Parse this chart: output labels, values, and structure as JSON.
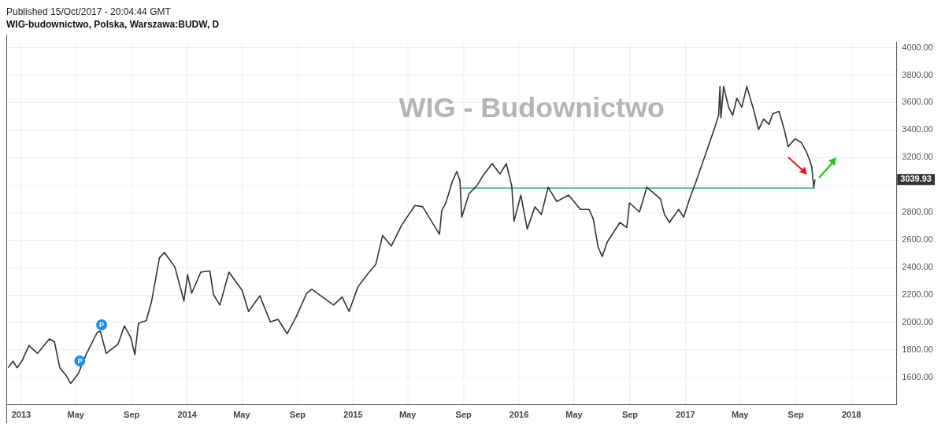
{
  "chart_data": {
    "type": "line",
    "title": "WIG-budownictwo, Polska, Warszawa:BUDW, D",
    "annotations": [
      "Published 15/Oct/2017 - 20:04:44 GMT",
      "WIG - Budownictwo",
      {
        "text": "P",
        "x": "2013-05-10",
        "y": 1720
      },
      {
        "text": "P",
        "x": "2013-06-27",
        "y": 1983
      }
    ],
    "xlim": [
      "2012-12-01",
      "2018-04-10"
    ],
    "xticks": [
      {
        "value": "2013-01-01",
        "label": "2013"
      },
      {
        "value": "2013-05-01",
        "label": "May"
      },
      {
        "value": "2013-09-01",
        "label": "Sep"
      },
      {
        "value": "2014-01-01",
        "label": "2014"
      },
      {
        "value": "2014-05-01",
        "label": "May"
      },
      {
        "value": "2014-09-01",
        "label": "Sep"
      },
      {
        "value": "2015-01-01",
        "label": "2015"
      },
      {
        "value": "2015-05-01",
        "label": "May"
      },
      {
        "value": "2015-09-01",
        "label": "Sep"
      },
      {
        "value": "2016-01-01",
        "label": "2016"
      },
      {
        "value": "2016-05-01",
        "label": "May"
      },
      {
        "value": "2016-09-01",
        "label": "Sep"
      },
      {
        "value": "2017-01-01",
        "label": "2017"
      },
      {
        "value": "2017-05-01",
        "label": "May"
      },
      {
        "value": "2017-09-01",
        "label": "Sep"
      },
      {
        "value": "2018-01-01",
        "label": "2018"
      }
    ],
    "ylim": [
      1400,
      4040
    ],
    "yticks": [
      {
        "value": 1600,
        "label": "1600.00"
      },
      {
        "value": 1800,
        "label": "1800.00"
      },
      {
        "value": 2000,
        "label": "2000.00"
      },
      {
        "value": 2200,
        "label": "2200.00"
      },
      {
        "value": 2400,
        "label": "2400.00"
      },
      {
        "value": 2600,
        "label": "2600.00"
      },
      {
        "value": 2800,
        "label": "2800.00"
      },
      {
        "value": 3000,
        "label": null
      },
      {
        "value": 3200,
        "label": "3200.00"
      },
      {
        "value": 3400,
        "label": "3400.00"
      },
      {
        "value": 3600,
        "label": "3600.00"
      },
      {
        "value": 3800,
        "label": "3800.00"
      },
      {
        "value": 4000,
        "label": "4000.00"
      }
    ],
    "grid": true,
    "ref_lines": [
      {
        "axis": "y",
        "value": 3039.93,
        "label": "3039.93",
        "color": "#333333"
      }
    ],
    "series": [
      {
        "color": "#333333",
        "x": [
          "2012-12-03",
          "2012-12-14",
          "2012-12-23",
          "2013-01-03",
          "2013-01-18",
          "2013-02-06",
          "2013-03-04",
          "2013-03-15",
          "2013-03-27",
          "2013-04-10",
          "2013-04-20",
          "2013-05-06",
          "2013-05-25",
          "2013-06-17",
          "2013-06-24",
          "2013-07-07",
          "2013-08-02",
          "2013-08-16",
          "2013-08-30",
          "2013-09-08",
          "2013-09-16",
          "2013-10-03",
          "2013-10-15",
          "2013-11-01",
          "2013-11-12",
          "2013-12-05",
          "2013-12-25",
          "2014-01-02",
          "2014-01-11",
          "2014-01-31",
          "2014-02-20",
          "2014-02-28",
          "2014-03-14",
          "2014-04-03",
          "2014-05-02",
          "2014-05-16",
          "2014-06-10",
          "2014-07-03",
          "2014-07-20",
          "2014-08-09",
          "2014-08-29",
          "2014-09-21",
          "2014-10-02",
          "2014-11-19",
          "2014-12-08",
          "2014-12-23",
          "2015-01-12",
          "2015-02-03",
          "2015-02-20",
          "2015-03-07",
          "2015-03-26",
          "2015-04-18",
          "2015-05-17",
          "2015-06-03",
          "2015-07-10",
          "2015-07-15",
          "2015-07-24",
          "2015-08-07",
          "2015-08-17",
          "2015-08-24",
          "2015-08-28",
          "2015-09-13",
          "2015-09-30",
          "2015-10-14",
          "2015-11-03",
          "2015-11-20",
          "2015-12-04",
          "2015-12-16",
          "2015-12-21",
          "2016-01-05",
          "2016-01-19",
          "2016-02-05",
          "2016-02-19",
          "2016-03-05",
          "2016-03-24",
          "2016-04-19",
          "2016-05-15",
          "2016-06-03",
          "2016-06-12",
          "2016-06-23",
          "2016-07-02",
          "2016-07-13",
          "2016-08-10",
          "2016-08-25",
          "2016-08-31",
          "2016-09-22",
          "2016-10-08",
          "2016-11-07",
          "2016-11-16",
          "2016-11-27",
          "2016-12-17",
          "2016-12-28",
          "2017-01-11",
          "2017-01-23",
          "2017-02-12",
          "2017-03-06",
          "2017-03-15",
          "2017-03-18",
          "2017-03-20",
          "2017-03-26",
          "2017-04-06",
          "2017-04-15",
          "2017-04-24",
          "2017-05-05",
          "2017-05-16",
          "2017-05-31",
          "2017-06-11",
          "2017-06-22",
          "2017-07-04",
          "2017-07-12",
          "2017-07-26",
          "2017-08-07",
          "2017-08-15",
          "2017-08-30",
          "2017-09-13",
          "2017-09-24",
          "2017-10-02",
          "2017-10-06",
          "2017-10-10",
          "2017-10-13"
        ],
        "values": [
          1670,
          1718,
          1670,
          1722,
          1832,
          1775,
          1880,
          1861,
          1670,
          1613,
          1556,
          1623,
          1775,
          1927,
          1937,
          1775,
          1842,
          1975,
          1890,
          1766,
          1994,
          2013,
          2156,
          2470,
          2509,
          2404,
          2156,
          2347,
          2213,
          2366,
          2375,
          2203,
          2127,
          2366,
          2233,
          2080,
          2194,
          2004,
          2023,
          1918,
          2042,
          2213,
          2242,
          2127,
          2185,
          2080,
          2261,
          2356,
          2423,
          2633,
          2556,
          2709,
          2851,
          2842,
          2642,
          2813,
          2870,
          3023,
          3099,
          3032,
          2766,
          2937,
          2994,
          3070,
          3156,
          3080,
          3156,
          2994,
          2737,
          2927,
          2680,
          2842,
          2785,
          2984,
          2880,
          2927,
          2823,
          2823,
          2756,
          2547,
          2480,
          2585,
          2728,
          2690,
          2870,
          2804,
          2984,
          2899,
          2785,
          2728,
          2823,
          2766,
          2908,
          3013,
          3204,
          3413,
          3508,
          3718,
          3489,
          3718,
          3566,
          3508,
          3632,
          3566,
          3718,
          3547,
          3404,
          3480,
          3442,
          3518,
          3537,
          3394,
          3280,
          3337,
          3309,
          3242,
          3175,
          3128,
          2984,
          3040
        ]
      },
      {
        "type": "line",
        "color": "#4db6a0",
        "x": [
          "2015-08-25",
          "2017-10-13"
        ],
        "values": [
          2978,
          2978
        ]
      }
    ]
  }
}
